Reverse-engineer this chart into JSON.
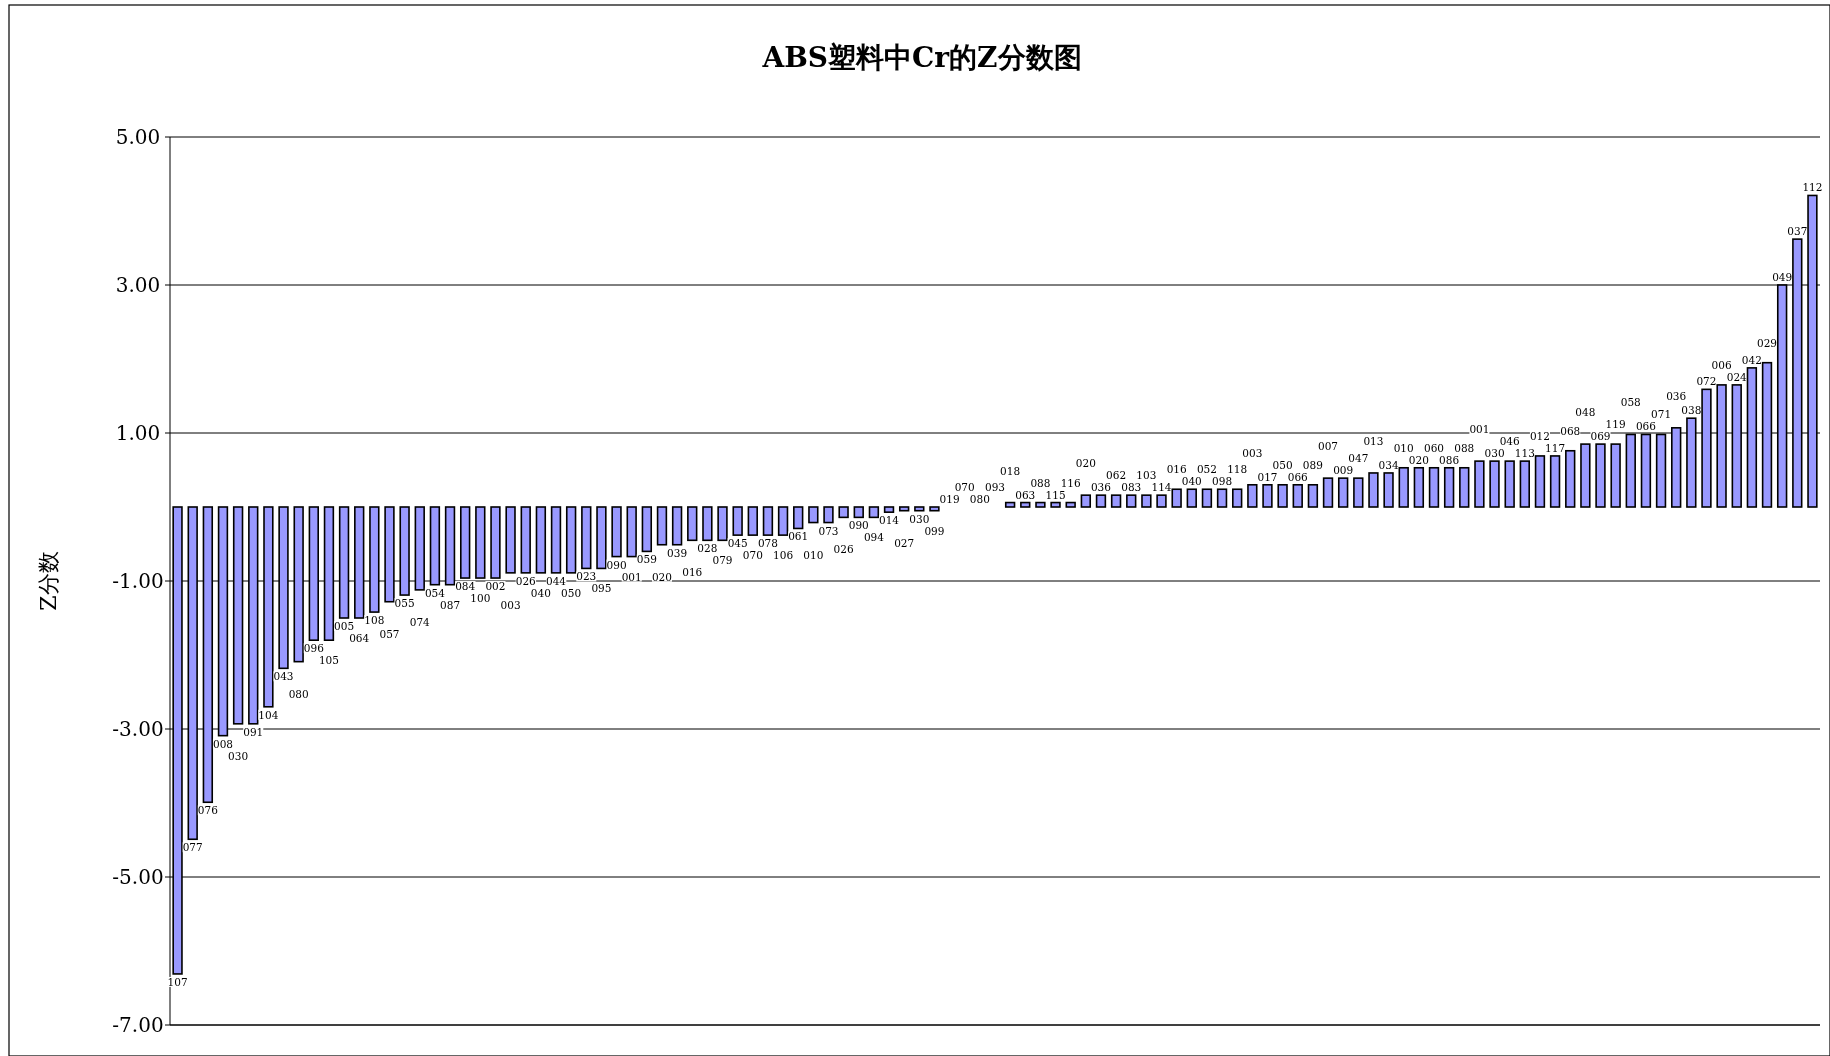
{
  "chart_data": {
    "type": "bar",
    "title": "ABS塑料中Cr的Z分数图",
    "ylabel": "Z分数",
    "color": "#9999ff",
    "grid": "y",
    "categories": [
      "107",
      "077",
      "076",
      "008",
      "030",
      "091",
      "104",
      "043",
      "080",
      "096",
      "105",
      "005",
      "064",
      "108",
      "057",
      "055",
      "074",
      "054",
      "087",
      "084",
      "100",
      "002",
      "003",
      "026",
      "040",
      "044",
      "050",
      "023",
      "095",
      "090",
      "001",
      "059",
      "020",
      "039",
      "016",
      "028",
      "079",
      "045",
      "070",
      "078",
      "106",
      "061",
      "010",
      "073",
      "026",
      "090",
      "094",
      "014",
      "027",
      "030",
      "099",
      "019",
      "070",
      "080",
      "093",
      "018",
      "063",
      "088",
      "115",
      "116",
      "020",
      "036",
      "062",
      "083",
      "103",
      "114",
      "016",
      "040",
      "052",
      "098",
      "118",
      "003",
      "017",
      "050",
      "066",
      "089",
      "007",
      "009",
      "047",
      "013",
      "034",
      "010",
      "020",
      "060",
      "086",
      "088",
      "001",
      "030",
      "046",
      "113",
      "012",
      "117",
      "068",
      "048",
      "069",
      "119",
      "058",
      "066",
      "071",
      "036",
      "038",
      "072",
      "006",
      "024",
      "042",
      "029",
      "049",
      "037",
      "112"
    ],
    "values": [
      -6.31,
      -4.49,
      -3.99,
      -3.09,
      -2.93,
      -2.93,
      -2.7,
      -2.18,
      -2.09,
      -1.8,
      -1.8,
      -1.5,
      -1.5,
      -1.42,
      -1.28,
      -1.19,
      -1.12,
      -1.05,
      -1.05,
      -0.96,
      -0.96,
      -0.96,
      -0.89,
      -0.89,
      -0.89,
      -0.89,
      -0.89,
      -0.83,
      -0.83,
      -0.67,
      -0.67,
      -0.6,
      -0.51,
      -0.51,
      -0.45,
      -0.45,
      -0.45,
      -0.38,
      -0.38,
      -0.38,
      -0.38,
      -0.29,
      -0.21,
      -0.21,
      -0.14,
      -0.14,
      -0.14,
      -0.07,
      -0.05,
      -0.05,
      -0.05,
      0,
      0,
      0,
      0,
      0.06,
      0.06,
      0.06,
      0.06,
      0.06,
      0.16,
      0.16,
      0.16,
      0.16,
      0.16,
      0.16,
      0.24,
      0.24,
      0.24,
      0.24,
      0.24,
      0.3,
      0.3,
      0.3,
      0.3,
      0.3,
      0.39,
      0.39,
      0.39,
      0.46,
      0.46,
      0.53,
      0.53,
      0.53,
      0.53,
      0.53,
      0.62,
      0.62,
      0.62,
      0.62,
      0.69,
      0.69,
      0.76,
      0.85,
      0.85,
      0.85,
      0.98,
      0.98,
      0.98,
      1.07,
      1.2,
      1.59,
      1.65,
      1.65,
      1.88,
      1.95,
      3.0,
      3.62,
      4.21
    ],
    "ylim": [
      -7,
      5
    ],
    "yticks": [
      {
        "value": -7,
        "label": "-7.00"
      },
      {
        "value": -5,
        "label": "-5.00"
      },
      {
        "value": -3,
        "label": "-3.00"
      },
      {
        "value": -1,
        "label": "-1.00"
      },
      {
        "value": 1,
        "label": "1.00"
      },
      {
        "value": 3,
        "label": "3.00"
      },
      {
        "value": 5,
        "label": "5.00"
      }
    ]
  }
}
